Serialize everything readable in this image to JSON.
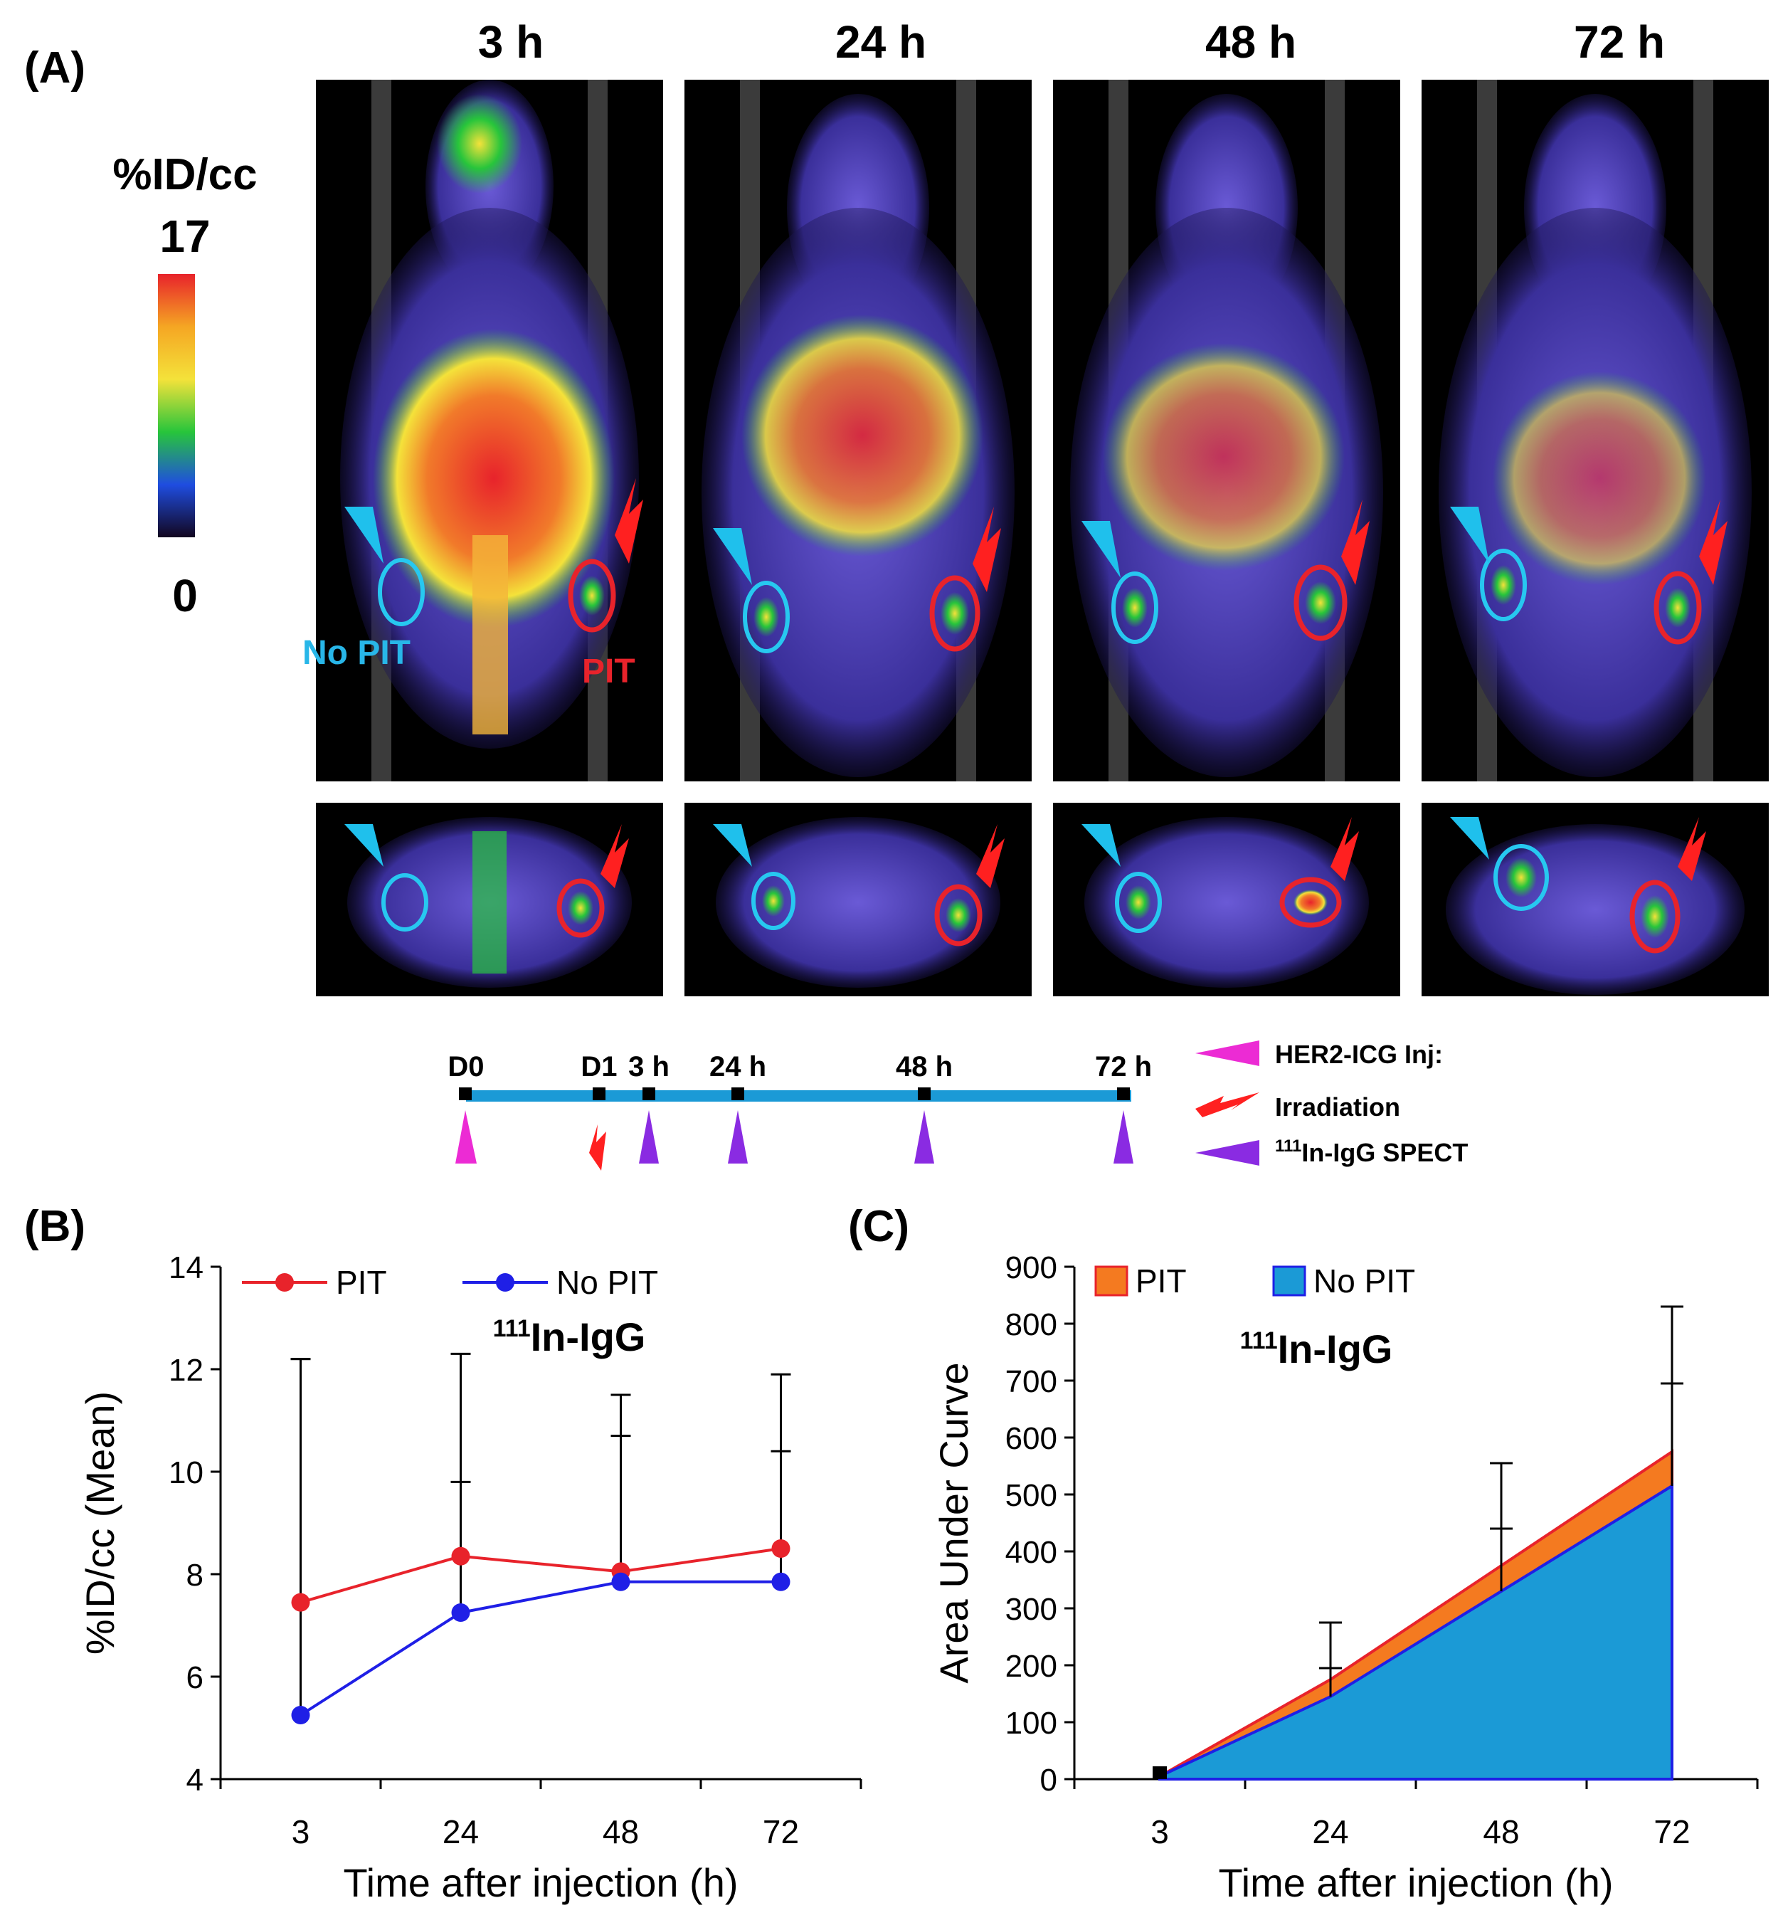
{
  "panelA": {
    "letter": "(A)",
    "timepoints": [
      "3 h",
      "24 h",
      "48 h",
      "72 h"
    ],
    "colorbar": {
      "title": "%ID/cc",
      "max": "17",
      "min": "0",
      "colors": [
        "#e8232b",
        "#f5a623",
        "#f4e23a",
        "#27c53b",
        "#1f4de0",
        "#12061f"
      ]
    },
    "scan_labels": {
      "no_pit": "No PIT",
      "pit": "PIT"
    },
    "timeline": {
      "days": [
        "D0",
        "D1"
      ],
      "times": [
        "3 h",
        "24 h",
        "48 h",
        "72 h"
      ],
      "legend": {
        "inj_sup": "",
        "inj": "HER2-ICG Inj:",
        "irr": "Irradiation",
        "spect_sup": "111",
        "spect": "In-IgG SPECT"
      }
    }
  },
  "chart_data": [
    {
      "panel": "(B)",
      "type": "line",
      "x": [
        3,
        24,
        48,
        72
      ],
      "categories": [
        "3",
        "24",
        "48",
        "72"
      ],
      "series": [
        {
          "name": "PIT",
          "color": "#e8232b",
          "values": [
            7.45,
            8.35,
            8.05,
            8.5
          ],
          "error_upper": [
            12.2,
            9.8,
            10.7,
            10.4
          ]
        },
        {
          "name": "No PIT",
          "color": "#1f1fe6",
          "values": [
            5.25,
            7.25,
            7.85,
            7.85
          ],
          "error_upper": [
            12.2,
            12.3,
            11.5,
            11.9
          ]
        }
      ],
      "annotation_sup": "111",
      "annotation": "In-IgG",
      "xlabel": "Time after injection (h)",
      "ylabel": "%ID/cc (Mean)",
      "ylim": [
        4,
        14
      ],
      "yticks": [
        "4",
        "6",
        "8",
        "10",
        "12",
        "14"
      ],
      "legend": "top"
    },
    {
      "panel": "(C)",
      "type": "area",
      "x": [
        3,
        24,
        48,
        72
      ],
      "categories": [
        "3",
        "24",
        "48",
        "72"
      ],
      "series": [
        {
          "name": "PIT",
          "color": "#f47a20",
          "edge": "#e8232b",
          "values": [
            5,
            175,
            375,
            575
          ],
          "error_upper": [
            5,
            275,
            555,
            830
          ]
        },
        {
          "name": "No PIT",
          "color": "#1b9ad6",
          "edge": "#1f1fe6",
          "values": [
            5,
            145,
            330,
            515
          ],
          "error_upper": [
            5,
            195,
            440,
            695
          ]
        }
      ],
      "annotation_sup": "111",
      "annotation": "In-IgG",
      "xlabel": "Time after injection (h)",
      "ylabel": "Area Under Curve",
      "ylim": [
        0,
        900
      ],
      "yticks": [
        "0",
        "100",
        "200",
        "300",
        "400",
        "500",
        "600",
        "700",
        "800",
        "900"
      ],
      "legend": "top-left"
    }
  ]
}
